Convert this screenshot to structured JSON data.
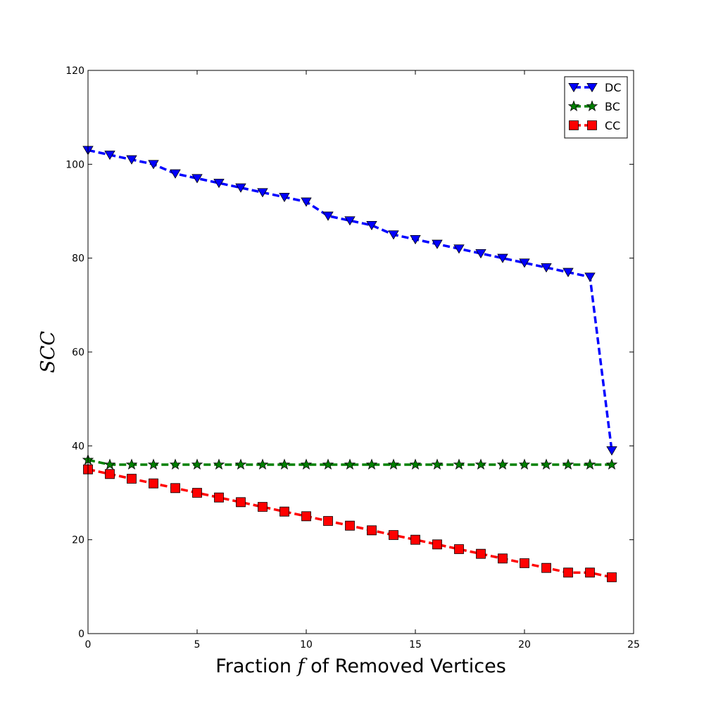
{
  "chart_data": {
    "type": "line",
    "title": "",
    "xlabel_parts": {
      "before": "Fraction ",
      "var": "f",
      "after": " of Removed Vertices"
    },
    "xlabel": "Fraction f of Removed Vertices",
    "ylabel": "SCC",
    "xlim": [
      0,
      25
    ],
    "ylim": [
      0,
      120
    ],
    "xticks": [
      0,
      5,
      10,
      15,
      20,
      25
    ],
    "yticks": [
      0,
      20,
      40,
      60,
      80,
      100,
      120
    ],
    "xtick_labels": [
      "0",
      "5",
      "10",
      "15",
      "20",
      "25"
    ],
    "ytick_labels": [
      "0",
      "20",
      "40",
      "60",
      "80",
      "100",
      "120"
    ],
    "grid": false,
    "legend_position": "top-right",
    "x": [
      0,
      1,
      2,
      3,
      4,
      5,
      6,
      7,
      8,
      9,
      10,
      11,
      12,
      13,
      14,
      15,
      16,
      17,
      18,
      19,
      20,
      21,
      22,
      23,
      24
    ],
    "series": [
      {
        "name": "DC",
        "color": "#0000ff",
        "marker": "triangle-down",
        "values": [
          103,
          102,
          101,
          100,
          98,
          97,
          96,
          95,
          94,
          93,
          92,
          89,
          88,
          87,
          85,
          84,
          83,
          82,
          81,
          80,
          79,
          78,
          77,
          76,
          39
        ]
      },
      {
        "name": "BC",
        "color": "#008000",
        "marker": "star",
        "values": [
          37,
          36,
          36,
          36,
          36,
          36,
          36,
          36,
          36,
          36,
          36,
          36,
          36,
          36,
          36,
          36,
          36,
          36,
          36,
          36,
          36,
          36,
          36,
          36,
          36
        ]
      },
      {
        "name": "CC",
        "color": "#ff0000",
        "marker": "square",
        "values": [
          35,
          34,
          33,
          32,
          31,
          30,
          29,
          28,
          27,
          26,
          25,
          24,
          23,
          22,
          21,
          20,
          19,
          18,
          17,
          16,
          15,
          14,
          13,
          13,
          12
        ]
      }
    ]
  }
}
